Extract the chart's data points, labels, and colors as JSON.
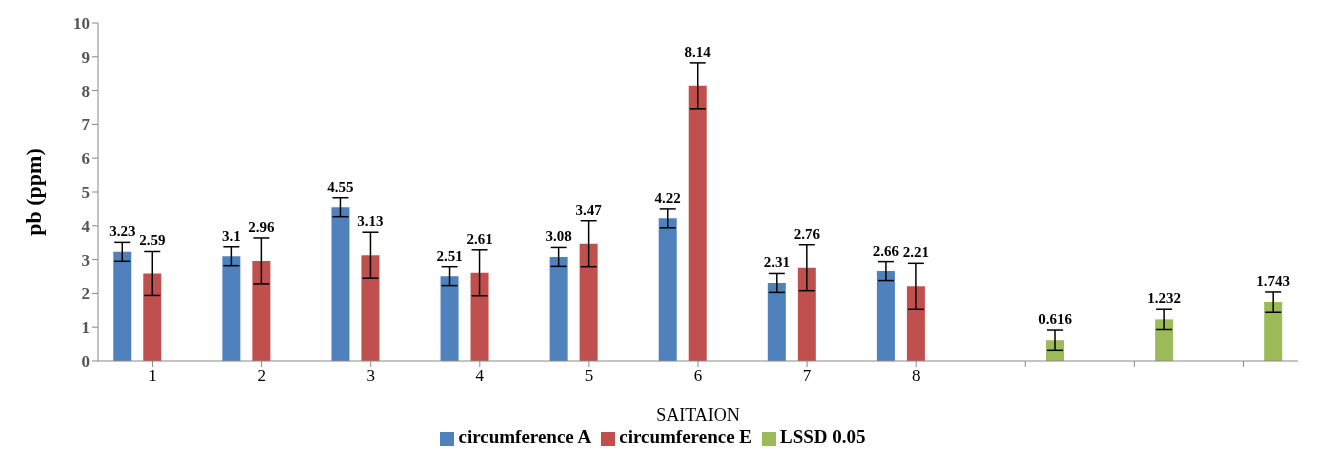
{
  "chart_data": {
    "type": "bar",
    "xlabel": "SAITAION",
    "ylabel": "pb (ppm)",
    "categories": [
      "1",
      "2",
      "3",
      "4",
      "5",
      "6",
      "7",
      "8",
      null,
      null,
      null
    ],
    "series": [
      {
        "name": "circumference A",
        "color": "#4f81bd",
        "values": [
          3.23,
          3.1,
          4.55,
          2.51,
          3.08,
          4.22,
          2.31,
          2.66,
          null,
          null,
          null
        ],
        "errors": [
          0.28,
          0.28,
          0.28,
          0.28,
          0.28,
          0.28,
          0.28,
          0.28,
          null,
          null,
          null
        ]
      },
      {
        "name": "circumference E",
        "color": "#c0504d",
        "values": [
          2.59,
          2.96,
          3.13,
          2.61,
          3.47,
          8.14,
          2.76,
          2.21,
          null,
          null,
          null
        ],
        "errors": [
          0.65,
          0.68,
          0.68,
          0.68,
          0.68,
          0.68,
          0.68,
          0.68,
          null,
          null,
          null
        ]
      },
      {
        "name": "LSSD 0.05",
        "color": "#9bbb59",
        "values": [
          null,
          null,
          null,
          null,
          null,
          null,
          null,
          null,
          0.616,
          1.232,
          1.743
        ],
        "errors": [
          null,
          null,
          null,
          null,
          null,
          null,
          null,
          null,
          0.3,
          0.3,
          0.3
        ]
      }
    ],
    "data_labels": true,
    "ylim": [
      0,
      10
    ],
    "yticks": [
      0,
      1,
      2,
      3,
      4,
      5,
      6,
      7,
      8,
      9,
      10
    ],
    "grid": false,
    "legend": "bottom"
  }
}
